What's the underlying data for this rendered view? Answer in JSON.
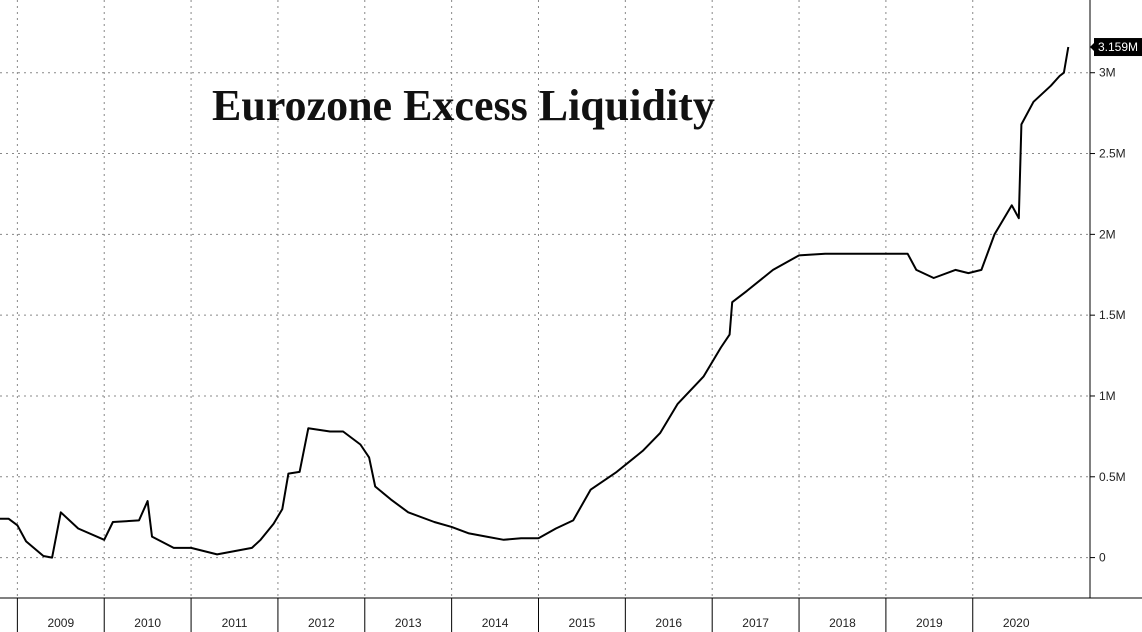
{
  "chart_data": {
    "type": "line",
    "title": "Eurozone Excess Liquidity",
    "xlabel": "",
    "ylabel": "",
    "ylim": [
      -250000,
      3450000
    ],
    "y_ticks": [
      {
        "value": 0,
        "label": "0"
      },
      {
        "value": 500000,
        "label": "0.5M"
      },
      {
        "value": 1000000,
        "label": "1M"
      },
      {
        "value": 1500000,
        "label": "1.5M"
      },
      {
        "value": 2000000,
        "label": "2M"
      },
      {
        "value": 2500000,
        "label": "2.5M"
      },
      {
        "value": 3000000,
        "label": "3M"
      }
    ],
    "x_range": [
      2008.3,
      2020.85
    ],
    "years": [
      "2009",
      "2010",
      "2011",
      "2012",
      "2013",
      "2014",
      "2015",
      "2016",
      "2017",
      "2018",
      "2019",
      "2020"
    ],
    "last_value": {
      "value": 3159000,
      "label": "3.159M"
    },
    "grid": true,
    "legend": "none",
    "line_color": "#000000",
    "series": [
      {
        "values": [
          [
            2008.3,
            240000
          ],
          [
            2008.4,
            240000
          ],
          [
            2008.5,
            200000
          ],
          [
            2008.6,
            100000
          ],
          [
            2008.8,
            10000
          ],
          [
            2008.9,
            0
          ],
          [
            2009.0,
            280000
          ],
          [
            2009.2,
            180000
          ],
          [
            2009.5,
            110000
          ],
          [
            2009.6,
            220000
          ],
          [
            2009.9,
            230000
          ],
          [
            2010.0,
            350000
          ],
          [
            2010.05,
            130000
          ],
          [
            2010.3,
            60000
          ],
          [
            2010.5,
            60000
          ],
          [
            2010.8,
            20000
          ],
          [
            2011.0,
            40000
          ],
          [
            2011.2,
            60000
          ],
          [
            2011.3,
            110000
          ],
          [
            2011.45,
            210000
          ],
          [
            2011.55,
            300000
          ],
          [
            2011.62,
            520000
          ],
          [
            2011.75,
            530000
          ],
          [
            2011.85,
            800000
          ],
          [
            2012.1,
            780000
          ],
          [
            2012.25,
            780000
          ],
          [
            2012.45,
            700000
          ],
          [
            2012.55,
            620000
          ],
          [
            2012.62,
            440000
          ],
          [
            2012.8,
            360000
          ],
          [
            2013.0,
            280000
          ],
          [
            2013.3,
            220000
          ],
          [
            2013.5,
            190000
          ],
          [
            2013.7,
            150000
          ],
          [
            2013.9,
            130000
          ],
          [
            2014.1,
            110000
          ],
          [
            2014.3,
            120000
          ],
          [
            2014.5,
            120000
          ],
          [
            2014.7,
            180000
          ],
          [
            2014.9,
            230000
          ],
          [
            2015.1,
            420000
          ],
          [
            2015.4,
            530000
          ],
          [
            2015.7,
            660000
          ],
          [
            2015.9,
            770000
          ],
          [
            2016.1,
            950000
          ],
          [
            2016.4,
            1120000
          ],
          [
            2016.6,
            1300000
          ],
          [
            2016.7,
            1380000
          ],
          [
            2016.73,
            1580000
          ],
          [
            2016.9,
            1650000
          ],
          [
            2017.2,
            1780000
          ],
          [
            2017.5,
            1870000
          ],
          [
            2017.8,
            1880000
          ],
          [
            2018.2,
            1880000
          ],
          [
            2018.6,
            1880000
          ],
          [
            2018.75,
            1880000
          ],
          [
            2018.85,
            1780000
          ],
          [
            2019.05,
            1730000
          ],
          [
            2019.3,
            1780000
          ],
          [
            2019.45,
            1760000
          ],
          [
            2019.6,
            1780000
          ],
          [
            2019.75,
            2000000
          ],
          [
            2019.95,
            2180000
          ],
          [
            2020.03,
            2100000
          ],
          [
            2020.06,
            2680000
          ],
          [
            2020.2,
            2820000
          ],
          [
            2020.4,
            2920000
          ],
          [
            2020.5,
            2980000
          ],
          [
            2020.55,
            3000000
          ],
          [
            2020.6,
            3159000
          ]
        ]
      }
    ]
  }
}
